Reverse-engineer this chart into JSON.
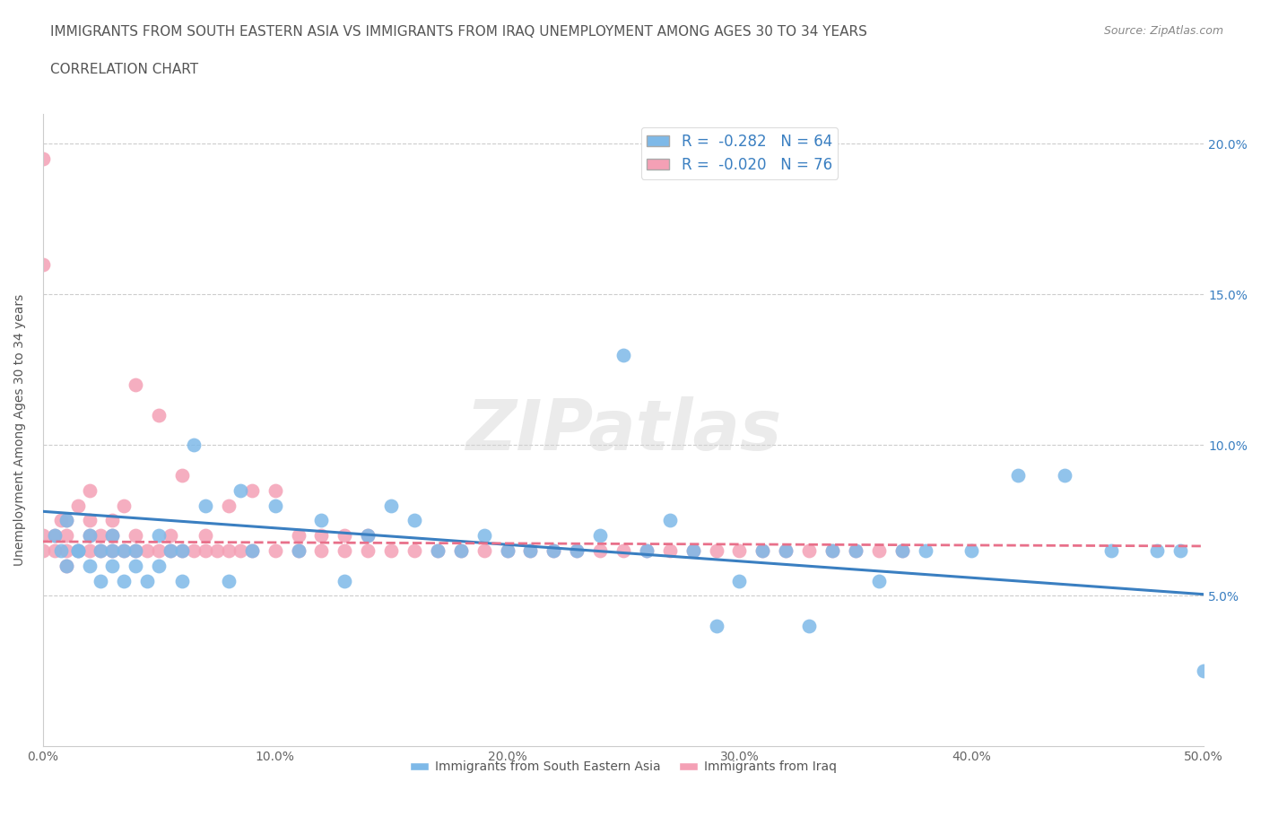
{
  "title_line1": "IMMIGRANTS FROM SOUTH EASTERN ASIA VS IMMIGRANTS FROM IRAQ UNEMPLOYMENT AMONG AGES 30 TO 34 YEARS",
  "title_line2": "CORRELATION CHART",
  "source": "Source: ZipAtlas.com",
  "ylabel": "Unemployment Among Ages 30 to 34 years",
  "watermark": "ZIPatlas",
  "x_min": 0.0,
  "x_max": 0.5,
  "y_min": 0.0,
  "y_max": 0.21,
  "x_ticks": [
    0.0,
    0.1,
    0.2,
    0.3,
    0.4,
    0.5
  ],
  "x_tick_labels": [
    "0.0%",
    "10.0%",
    "20.0%",
    "30.0%",
    "40.0%",
    "50.0%"
  ],
  "y_ticks": [
    0.05,
    0.1,
    0.15,
    0.2
  ],
  "y_tick_labels": [
    "5.0%",
    "10.0%",
    "15.0%",
    "20.0%"
  ],
  "blue_color": "#7EB9E8",
  "pink_color": "#F4A0B5",
  "blue_line_color": "#3A7FC1",
  "pink_line_color": "#E8708A",
  "legend_R1": "-0.282",
  "legend_N1": "64",
  "legend_R2": "-0.020",
  "legend_N2": "76",
  "blue_scatter_x": [
    0.005,
    0.008,
    0.01,
    0.01,
    0.015,
    0.02,
    0.02,
    0.025,
    0.025,
    0.03,
    0.03,
    0.035,
    0.035,
    0.04,
    0.04,
    0.045,
    0.05,
    0.05,
    0.055,
    0.06,
    0.06,
    0.065,
    0.07,
    0.08,
    0.085,
    0.09,
    0.1,
    0.11,
    0.12,
    0.13,
    0.14,
    0.15,
    0.16,
    0.17,
    0.18,
    0.19,
    0.2,
    0.21,
    0.22,
    0.23,
    0.24,
    0.25,
    0.26,
    0.27,
    0.28,
    0.29,
    0.3,
    0.31,
    0.32,
    0.33,
    0.34,
    0.35,
    0.36,
    0.37,
    0.38,
    0.4,
    0.42,
    0.44,
    0.46,
    0.48,
    0.49,
    0.5,
    0.015,
    0.03
  ],
  "blue_scatter_y": [
    0.07,
    0.065,
    0.075,
    0.06,
    0.065,
    0.06,
    0.07,
    0.055,
    0.065,
    0.06,
    0.07,
    0.055,
    0.065,
    0.06,
    0.065,
    0.055,
    0.06,
    0.07,
    0.065,
    0.055,
    0.065,
    0.1,
    0.08,
    0.055,
    0.085,
    0.065,
    0.08,
    0.065,
    0.075,
    0.055,
    0.07,
    0.08,
    0.075,
    0.065,
    0.065,
    0.07,
    0.065,
    0.065,
    0.065,
    0.065,
    0.07,
    0.13,
    0.065,
    0.075,
    0.065,
    0.04,
    0.055,
    0.065,
    0.065,
    0.04,
    0.065,
    0.065,
    0.055,
    0.065,
    0.065,
    0.065,
    0.09,
    0.09,
    0.065,
    0.065,
    0.065,
    0.025,
    0.065,
    0.065
  ],
  "pink_scatter_x": [
    0.0,
    0.0,
    0.0,
    0.0,
    0.005,
    0.005,
    0.008,
    0.01,
    0.01,
    0.01,
    0.01,
    0.015,
    0.015,
    0.02,
    0.02,
    0.02,
    0.02,
    0.025,
    0.025,
    0.03,
    0.03,
    0.03,
    0.035,
    0.035,
    0.04,
    0.04,
    0.04,
    0.045,
    0.05,
    0.05,
    0.055,
    0.055,
    0.06,
    0.06,
    0.065,
    0.07,
    0.07,
    0.075,
    0.08,
    0.08,
    0.085,
    0.09,
    0.09,
    0.1,
    0.1,
    0.11,
    0.11,
    0.12,
    0.12,
    0.13,
    0.13,
    0.14,
    0.14,
    0.15,
    0.16,
    0.17,
    0.18,
    0.19,
    0.2,
    0.21,
    0.22,
    0.23,
    0.24,
    0.25,
    0.26,
    0.27,
    0.28,
    0.29,
    0.3,
    0.31,
    0.32,
    0.33,
    0.34,
    0.35,
    0.36,
    0.37
  ],
  "pink_scatter_y": [
    0.195,
    0.16,
    0.07,
    0.065,
    0.065,
    0.07,
    0.075,
    0.06,
    0.065,
    0.07,
    0.075,
    0.08,
    0.065,
    0.065,
    0.07,
    0.075,
    0.085,
    0.065,
    0.07,
    0.065,
    0.07,
    0.075,
    0.08,
    0.065,
    0.065,
    0.07,
    0.12,
    0.065,
    0.065,
    0.11,
    0.065,
    0.07,
    0.065,
    0.09,
    0.065,
    0.065,
    0.07,
    0.065,
    0.065,
    0.08,
    0.065,
    0.085,
    0.065,
    0.065,
    0.085,
    0.065,
    0.07,
    0.065,
    0.07,
    0.065,
    0.07,
    0.065,
    0.07,
    0.065,
    0.065,
    0.065,
    0.065,
    0.065,
    0.065,
    0.065,
    0.065,
    0.065,
    0.065,
    0.065,
    0.065,
    0.065,
    0.065,
    0.065,
    0.065,
    0.065,
    0.065,
    0.065,
    0.065,
    0.065,
    0.065,
    0.065
  ],
  "title_fontsize": 11,
  "axis_label_fontsize": 10,
  "tick_fontsize": 10
}
